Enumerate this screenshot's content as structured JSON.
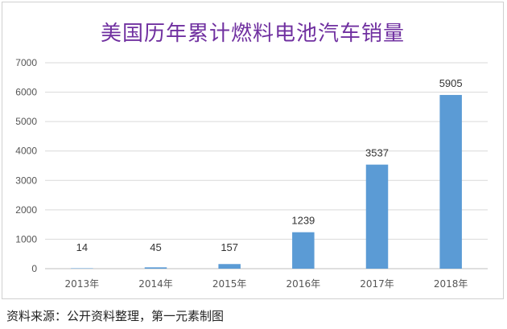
{
  "chart_data": {
    "type": "bar",
    "title": "美国历年累计燃料电池汽车销量",
    "categories": [
      "2013年",
      "2014年",
      "2015年",
      "2016年",
      "2017年",
      "2018年"
    ],
    "values": [
      14,
      45,
      157,
      1239,
      3537,
      5905
    ],
    "ylim": [
      0,
      7000
    ],
    "yticks": [
      0,
      1000,
      2000,
      3000,
      4000,
      5000,
      6000,
      7000
    ],
    "grid": true,
    "bar_color": "#5b9bd5"
  },
  "source": "资料来源：公开资料整理，第一元素制图"
}
